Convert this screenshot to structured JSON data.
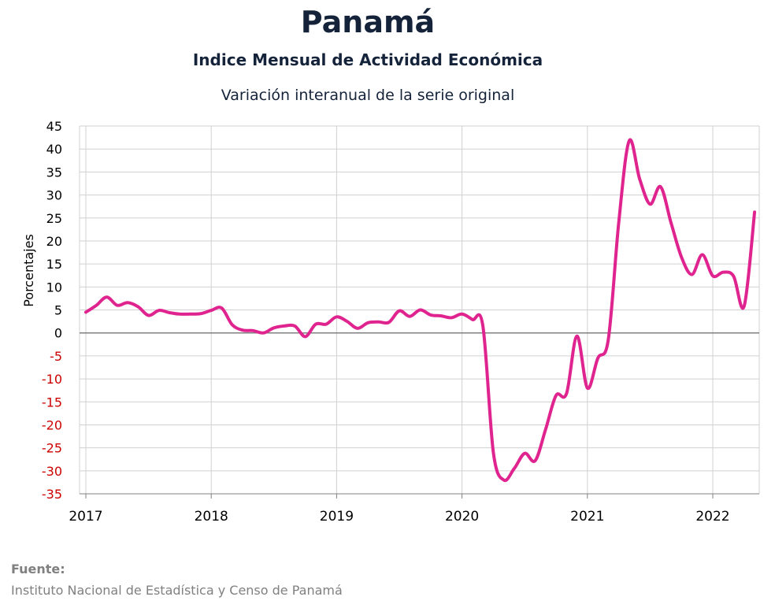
{
  "header": {
    "title": "Panamá",
    "subtitle": "Indice Mensual de  Actividad Económica",
    "subtitle2": "Variación interanual de la serie original"
  },
  "source": {
    "label": "Fuente:",
    "text": "Instituto Nacional de Estadística y Censo de Panamá"
  },
  "colors": {
    "series": "#e0248f",
    "positive_tick": "#000000",
    "negative_tick": "#cc0000",
    "grid": "#d0d0d0",
    "zero_line": "#808080"
  },
  "chart_data": {
    "type": "line",
    "title": "Panamá",
    "ylabel": "Porcentajes",
    "xlabel": "",
    "ylim": [
      -35,
      45
    ],
    "yticks": [
      45,
      40,
      35,
      30,
      25,
      20,
      15,
      10,
      5,
      0,
      -5,
      -10,
      -15,
      -20,
      -25,
      -30,
      -35
    ],
    "xtick_labels": [
      "2017",
      "2018",
      "2019",
      "2020",
      "2021",
      "2022"
    ],
    "grid": true,
    "series": [
      {
        "values": [
          [
            "2017-01",
            4.5
          ],
          [
            "2017-02",
            6.0
          ],
          [
            "2017-03",
            7.8
          ],
          [
            "2017-04",
            6.0
          ],
          [
            "2017-05",
            6.6
          ],
          [
            "2017-06",
            5.7
          ],
          [
            "2017-07",
            3.8
          ],
          [
            "2017-08",
            4.9
          ],
          [
            "2017-09",
            4.4
          ],
          [
            "2017-10",
            4.1
          ],
          [
            "2017-11",
            4.1
          ],
          [
            "2017-12",
            4.2
          ],
          [
            "2018-01",
            4.9
          ],
          [
            "2018-02",
            5.4
          ],
          [
            "2018-03",
            1.8
          ],
          [
            "2018-04",
            0.6
          ],
          [
            "2018-05",
            0.5
          ],
          [
            "2018-06",
            0.0
          ],
          [
            "2018-07",
            1.1
          ],
          [
            "2018-08",
            1.5
          ],
          [
            "2018-09",
            1.5
          ],
          [
            "2018-10",
            -0.8
          ],
          [
            "2018-11",
            1.9
          ],
          [
            "2018-12",
            1.9
          ],
          [
            "2019-01",
            3.5
          ],
          [
            "2019-02",
            2.5
          ],
          [
            "2019-03",
            1.0
          ],
          [
            "2019-04",
            2.2
          ],
          [
            "2019-05",
            2.4
          ],
          [
            "2019-06",
            2.3
          ],
          [
            "2019-07",
            4.8
          ],
          [
            "2019-08",
            3.6
          ],
          [
            "2019-09",
            5.0
          ],
          [
            "2019-10",
            3.9
          ],
          [
            "2019-11",
            3.7
          ],
          [
            "2019-12",
            3.3
          ],
          [
            "2020-01",
            4.1
          ],
          [
            "2020-02",
            2.9
          ],
          [
            "2020-03",
            1.5
          ],
          [
            "2020-04",
            -26.0
          ],
          [
            "2020-05",
            -32.0
          ],
          [
            "2020-06",
            -29.5
          ],
          [
            "2020-07",
            -26.2
          ],
          [
            "2020-08",
            -27.8
          ],
          [
            "2020-09",
            -21.0
          ],
          [
            "2020-10",
            -13.6
          ],
          [
            "2020-11",
            -13.2
          ],
          [
            "2020-12",
            -0.7
          ],
          [
            "2021-01",
            -12.0
          ],
          [
            "2021-02",
            -5.5
          ],
          [
            "2021-03",
            -1.5
          ],
          [
            "2021-04",
            24.0
          ],
          [
            "2021-05",
            41.8
          ],
          [
            "2021-06",
            33.5
          ],
          [
            "2021-07",
            28.0
          ],
          [
            "2021-08",
            31.8
          ],
          [
            "2021-09",
            24.0
          ],
          [
            "2021-10",
            16.5
          ],
          [
            "2021-11",
            12.7
          ],
          [
            "2021-12",
            17.0
          ],
          [
            "2022-01",
            12.4
          ],
          [
            "2022-02",
            13.2
          ],
          [
            "2022-03",
            12.3
          ],
          [
            "2022-04",
            5.8
          ],
          [
            "2022-05",
            26.3
          ]
        ]
      }
    ]
  }
}
